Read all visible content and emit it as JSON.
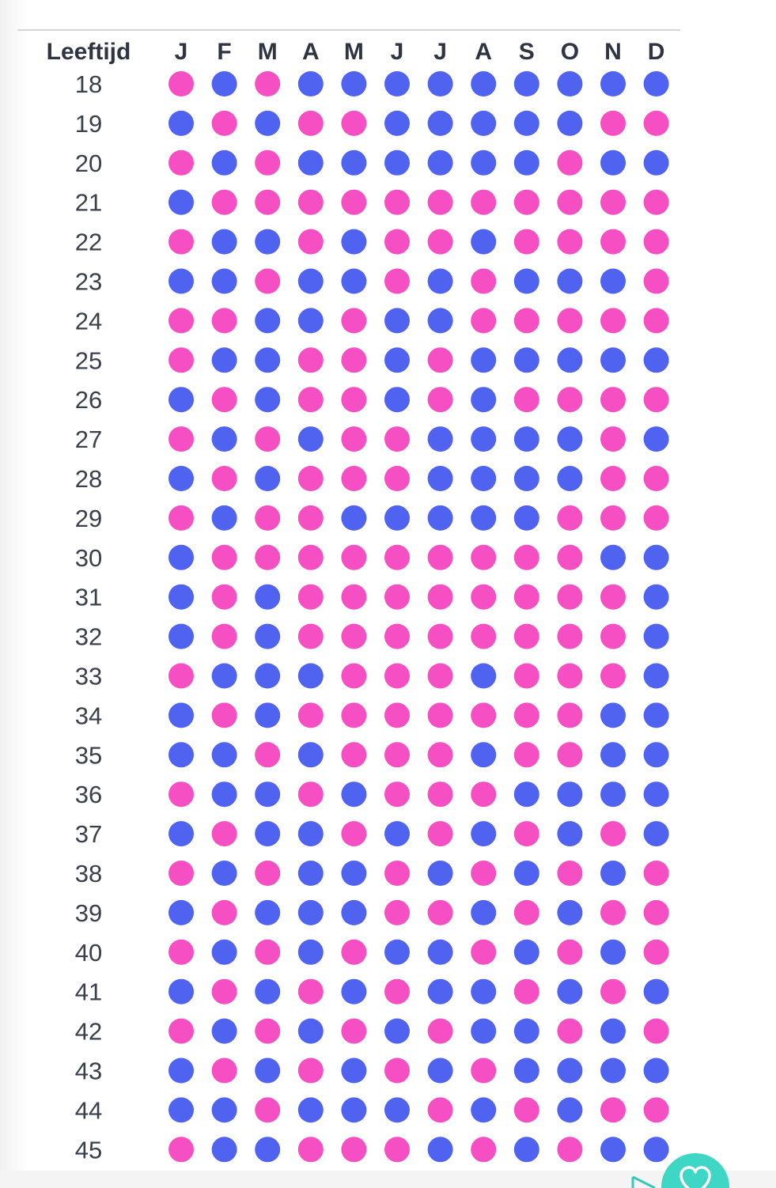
{
  "chart_data": {
    "type": "table",
    "title": "",
    "row_header": "Leeftijd",
    "columns": [
      "J",
      "F",
      "M",
      "A",
      "M",
      "J",
      "J",
      "A",
      "S",
      "O",
      "N",
      "D"
    ],
    "legend": {
      "P": "pink",
      "B": "blue"
    },
    "colors": {
      "P": "#f54fc3",
      "B": "#4f63f0"
    },
    "rows": [
      {
        "age": "18",
        "dots": [
          "P",
          "B",
          "P",
          "B",
          "B",
          "B",
          "B",
          "B",
          "B",
          "B",
          "B",
          "B"
        ]
      },
      {
        "age": "19",
        "dots": [
          "B",
          "P",
          "B",
          "P",
          "P",
          "B",
          "B",
          "B",
          "B",
          "B",
          "P",
          "P"
        ]
      },
      {
        "age": "20",
        "dots": [
          "P",
          "B",
          "P",
          "B",
          "B",
          "B",
          "B",
          "B",
          "B",
          "P",
          "B",
          "B"
        ]
      },
      {
        "age": "21",
        "dots": [
          "B",
          "P",
          "P",
          "P",
          "P",
          "P",
          "P",
          "P",
          "P",
          "P",
          "P",
          "P"
        ]
      },
      {
        "age": "22",
        "dots": [
          "P",
          "B",
          "B",
          "P",
          "B",
          "P",
          "P",
          "B",
          "P",
          "P",
          "P",
          "P"
        ]
      },
      {
        "age": "23",
        "dots": [
          "B",
          "B",
          "P",
          "B",
          "B",
          "P",
          "B",
          "P",
          "B",
          "B",
          "B",
          "P"
        ]
      },
      {
        "age": "24",
        "dots": [
          "P",
          "P",
          "B",
          "B",
          "P",
          "B",
          "B",
          "P",
          "P",
          "P",
          "P",
          "P"
        ]
      },
      {
        "age": "25",
        "dots": [
          "P",
          "B",
          "B",
          "P",
          "P",
          "B",
          "P",
          "B",
          "B",
          "B",
          "B",
          "B"
        ]
      },
      {
        "age": "26",
        "dots": [
          "B",
          "P",
          "B",
          "P",
          "P",
          "B",
          "P",
          "B",
          "P",
          "P",
          "P",
          "P"
        ]
      },
      {
        "age": "27",
        "dots": [
          "P",
          "B",
          "P",
          "B",
          "P",
          "P",
          "B",
          "B",
          "B",
          "B",
          "P",
          "B"
        ]
      },
      {
        "age": "28",
        "dots": [
          "B",
          "P",
          "B",
          "P",
          "P",
          "P",
          "B",
          "B",
          "B",
          "B",
          "P",
          "P"
        ]
      },
      {
        "age": "29",
        "dots": [
          "P",
          "B",
          "P",
          "P",
          "B",
          "B",
          "B",
          "B",
          "B",
          "P",
          "P",
          "P"
        ]
      },
      {
        "age": "30",
        "dots": [
          "B",
          "P",
          "P",
          "P",
          "P",
          "P",
          "P",
          "P",
          "P",
          "P",
          "B",
          "B"
        ]
      },
      {
        "age": "31",
        "dots": [
          "B",
          "P",
          "B",
          "P",
          "P",
          "P",
          "P",
          "P",
          "P",
          "P",
          "P",
          "B"
        ]
      },
      {
        "age": "32",
        "dots": [
          "B",
          "P",
          "B",
          "P",
          "P",
          "P",
          "P",
          "P",
          "P",
          "P",
          "P",
          "B"
        ]
      },
      {
        "age": "33",
        "dots": [
          "P",
          "B",
          "B",
          "B",
          "P",
          "P",
          "P",
          "B",
          "P",
          "P",
          "P",
          "B"
        ]
      },
      {
        "age": "34",
        "dots": [
          "B",
          "P",
          "B",
          "P",
          "P",
          "P",
          "P",
          "P",
          "P",
          "P",
          "B",
          "B"
        ]
      },
      {
        "age": "35",
        "dots": [
          "B",
          "B",
          "P",
          "B",
          "P",
          "P",
          "P",
          "B",
          "P",
          "P",
          "B",
          "B"
        ]
      },
      {
        "age": "36",
        "dots": [
          "P",
          "B",
          "B",
          "P",
          "B",
          "P",
          "P",
          "P",
          "B",
          "B",
          "B",
          "B"
        ]
      },
      {
        "age": "37",
        "dots": [
          "B",
          "P",
          "B",
          "B",
          "P",
          "B",
          "P",
          "B",
          "P",
          "B",
          "P",
          "B"
        ]
      },
      {
        "age": "38",
        "dots": [
          "P",
          "B",
          "P",
          "B",
          "B",
          "P",
          "B",
          "P",
          "B",
          "P",
          "B",
          "P"
        ]
      },
      {
        "age": "39",
        "dots": [
          "B",
          "P",
          "B",
          "B",
          "B",
          "P",
          "P",
          "B",
          "P",
          "B",
          "P",
          "P"
        ]
      },
      {
        "age": "40",
        "dots": [
          "P",
          "B",
          "P",
          "B",
          "P",
          "B",
          "B",
          "P",
          "B",
          "P",
          "B",
          "P"
        ]
      },
      {
        "age": "41",
        "dots": [
          "B",
          "P",
          "B",
          "P",
          "B",
          "P",
          "B",
          "B",
          "P",
          "B",
          "P",
          "B"
        ]
      },
      {
        "age": "42",
        "dots": [
          "P",
          "B",
          "P",
          "B",
          "P",
          "B",
          "P",
          "B",
          "B",
          "P",
          "B",
          "P"
        ]
      },
      {
        "age": "43",
        "dots": [
          "B",
          "P",
          "B",
          "P",
          "B",
          "P",
          "B",
          "P",
          "B",
          "B",
          "B",
          "B"
        ]
      },
      {
        "age": "44",
        "dots": [
          "B",
          "B",
          "P",
          "B",
          "B",
          "B",
          "P",
          "B",
          "P",
          "B",
          "P",
          "P"
        ]
      },
      {
        "age": "45",
        "dots": [
          "P",
          "B",
          "B",
          "P",
          "P",
          "P",
          "B",
          "P",
          "B",
          "P",
          "B",
          "B"
        ]
      }
    ]
  },
  "ui": {
    "icons": {
      "fab": "heart-icon",
      "send": "send-icon"
    },
    "accent": "#3ed6c4"
  }
}
